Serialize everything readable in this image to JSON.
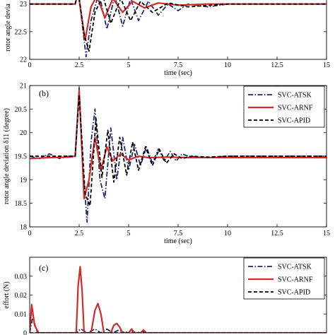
{
  "chart_data": [
    {
      "type": "line",
      "panel_label": "",
      "xlabel": "time (sec)",
      "ylabel": "rotor angle devia",
      "xlim": [
        0,
        15
      ],
      "ylim": [
        22,
        23.15
      ],
      "x_ticks": [
        "0",
        "2.5",
        "5",
        "7.5",
        "10",
        "12.5",
        "15"
      ],
      "y_ticks": [
        "22",
        "22.5",
        "23"
      ],
      "legend": [],
      "series": [
        {
          "style": "dashdot",
          "color": "#1f2a6e",
          "x": [
            0,
            2.3,
            2.45,
            2.7,
            2.85,
            3.1,
            3.5,
            3.9,
            4.3,
            4.7,
            5.1,
            5.5,
            6,
            6.5,
            7,
            7.5,
            8,
            9,
            10,
            15
          ],
          "y": [
            23.0,
            23.0,
            23.25,
            22.5,
            22.05,
            22.7,
            23.2,
            22.55,
            23.15,
            22.6,
            23.1,
            22.7,
            23.05,
            22.8,
            23.0,
            22.88,
            23.0,
            22.95,
            23.0,
            23.0
          ]
        },
        {
          "style": "solid",
          "color": "#d42a2a",
          "x": [
            0,
            2.3,
            2.45,
            2.8,
            3.1,
            3.4,
            3.8,
            4.2,
            4.7,
            5.2,
            5.8,
            6.5,
            7.5,
            9,
            15
          ],
          "y": [
            23.0,
            23.0,
            23.2,
            22.35,
            22.95,
            23.15,
            22.75,
            23.1,
            22.85,
            23.05,
            22.93,
            23.02,
            22.98,
            23.0,
            23.0
          ]
        },
        {
          "style": "dashed",
          "color": "#000000",
          "x": [
            0,
            2.3,
            2.45,
            2.75,
            3.0,
            3.3,
            3.7,
            4.1,
            4.6,
            5.1,
            5.6,
            6.2,
            7,
            8,
            10,
            15
          ],
          "y": [
            23.0,
            23.0,
            23.25,
            22.45,
            22.15,
            22.85,
            23.15,
            22.65,
            23.1,
            22.7,
            23.05,
            22.85,
            23.02,
            22.95,
            23.0,
            23.0
          ]
        }
      ]
    },
    {
      "type": "line",
      "panel_label": "(b)",
      "xlabel": "time (sec)",
      "ylabel": "rotor angle deviation δ11 (degree)",
      "xlim": [
        0,
        15
      ],
      "ylim": [
        18,
        21
      ],
      "x_ticks": [
        "0",
        "2.5",
        "5",
        "7.5",
        "10",
        "12.5",
        "15"
      ],
      "y_ticks": [
        "18",
        "18.5",
        "19",
        "19.5",
        "20",
        "20.5",
        "21"
      ],
      "legend": [
        "SVC-ATSK",
        "SVC-ARNF",
        "SVC-APID"
      ],
      "series": [
        {
          "name": "SVC-ATSK",
          "style": "dashdot",
          "color": "#1f2a6e",
          "x": [
            0,
            0.5,
            1,
            1.5,
            2.0,
            2.3,
            2.5,
            2.7,
            2.9,
            3.1,
            3.3,
            3.55,
            3.8,
            4.1,
            4.4,
            4.7,
            5.0,
            5.3,
            5.6,
            5.9,
            6.2,
            6.5,
            6.8,
            7.1,
            7.4,
            7.7,
            8.0,
            9,
            10,
            15
          ],
          "y": [
            19.5,
            19.45,
            19.55,
            19.45,
            19.5,
            19.5,
            20.95,
            19.2,
            18.1,
            19.8,
            20.5,
            19.0,
            18.6,
            20.1,
            19.0,
            19.9,
            19.2,
            19.75,
            19.3,
            19.7,
            19.35,
            19.65,
            19.4,
            19.6,
            19.4,
            19.55,
            19.5,
            19.47,
            19.5,
            19.5
          ]
        },
        {
          "name": "SVC-ARNF",
          "style": "solid",
          "color": "#d42a2a",
          "x": [
            0,
            1,
            2.0,
            2.3,
            2.5,
            2.75,
            3.0,
            3.3,
            3.6,
            3.9,
            4.2,
            4.6,
            5.0,
            5.5,
            6,
            7,
            8,
            15
          ],
          "y": [
            19.45,
            19.47,
            19.48,
            19.5,
            20.9,
            18.6,
            19.0,
            19.9,
            19.2,
            19.7,
            19.4,
            19.55,
            19.42,
            19.5,
            19.47,
            19.48,
            19.47,
            19.47
          ]
        },
        {
          "name": "SVC-APID",
          "style": "dashed",
          "color": "#000000",
          "x": [
            0,
            1,
            2.0,
            2.3,
            2.5,
            2.8,
            3.05,
            3.35,
            3.65,
            3.95,
            4.25,
            4.55,
            4.9,
            5.2,
            5.5,
            5.85,
            6.2,
            6.55,
            6.9,
            7.3,
            7.7,
            8.2,
            9,
            10,
            15
          ],
          "y": [
            19.5,
            19.5,
            19.5,
            19.5,
            20.8,
            18.7,
            18.45,
            20.3,
            19.05,
            20.05,
            18.95,
            19.9,
            19.1,
            19.8,
            19.2,
            19.7,
            19.3,
            19.65,
            19.35,
            19.55,
            19.45,
            19.5,
            19.48,
            19.5,
            19.5
          ]
        }
      ]
    },
    {
      "type": "line",
      "panel_label": "(c)",
      "xlabel": "",
      "ylabel": "effort (N)",
      "xlim": [
        0,
        15
      ],
      "ylim": [
        0,
        0.04
      ],
      "x_ticks": [],
      "y_ticks": [
        "0",
        "0.01",
        "0.02",
        "0.03"
      ],
      "legend": [
        "SVC-ATSK",
        "SVC-ARNF",
        "SVC-APID"
      ],
      "series": [
        {
          "name": "SVC-ATSK",
          "style": "dashdot",
          "color": "#1f2a6e",
          "x": [
            0,
            0.15,
            0.4,
            2.3,
            2.6,
            2.9,
            3.3,
            3.6,
            3.9,
            4.2,
            4.5,
            4.8,
            5.1,
            5.4,
            5.7,
            6.0,
            15
          ],
          "y": [
            0.0,
            0.008,
            0.0,
            0.0,
            0.002,
            0.0,
            0.002,
            0.0,
            0.002,
            0.0,
            0.0015,
            0.0,
            0.001,
            0.0,
            0.0008,
            0.0,
            0.0
          ]
        },
        {
          "name": "SVC-ARNF",
          "style": "solid",
          "color": "#d42a2a",
          "x": [
            0,
            0.1,
            0.25,
            0.45,
            2.35,
            2.45,
            2.55,
            2.65,
            2.75,
            3.1,
            3.3,
            3.45,
            3.6,
            3.75,
            3.9,
            4.1,
            4.25,
            4.4,
            4.55,
            4.7,
            5.0,
            5.15,
            5.3,
            5.6,
            5.75,
            5.9,
            6.2,
            15
          ],
          "y": [
            0.0,
            0.015,
            0.004,
            0.0,
            0.0,
            0.025,
            0.035,
            0.022,
            0.0,
            0.0,
            0.012,
            0.0155,
            0.01,
            0.0,
            0.0,
            0.0,
            0.004,
            0.005,
            0.003,
            0.0,
            0.0,
            0.002,
            0.0,
            0.0,
            0.0015,
            0.0,
            0.0,
            0.0
          ]
        },
        {
          "name": "SVC-APID",
          "style": "dashed",
          "color": "#000000",
          "x": [
            0,
            15
          ],
          "y": [
            0.0,
            0.0
          ]
        }
      ]
    }
  ]
}
